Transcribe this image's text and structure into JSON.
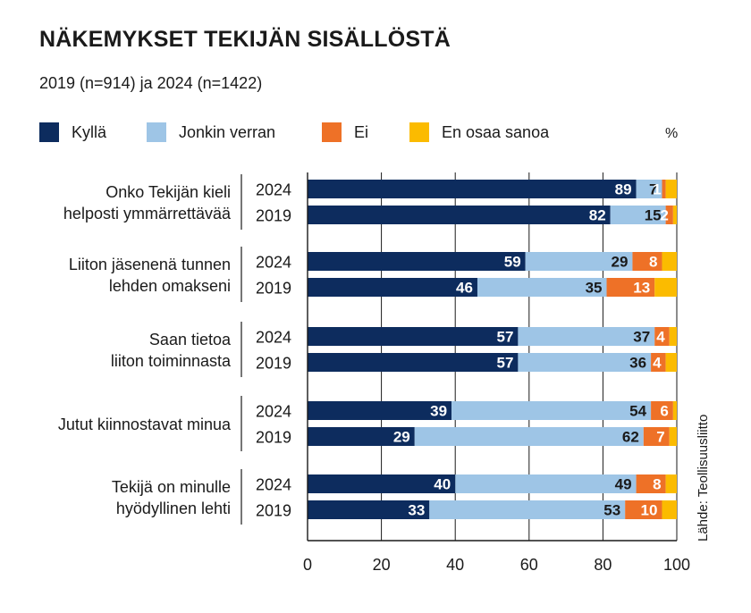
{
  "title": "NÄKEMYKSET TEKIJÄN SISÄLLÖSTÄ",
  "subtitle": "2019 (n=914) ja 2024 (n=1422)",
  "unit": "%",
  "source": "Lähde: Teollisuusliitto",
  "colors": {
    "kylla": "#0d2c5e",
    "jonkin": "#9ec5e6",
    "ei": "#ee7127",
    "eos": "#fbbb00"
  },
  "chart_data": {
    "type": "bar",
    "orientation": "horizontal",
    "stacked": true,
    "title": "NÄKEMYKSET TEKIJÄN SISÄLLÖSTÄ",
    "subtitle": "2019 (n=914) ja 2024 (n=1422)",
    "unit": "%",
    "xlim": [
      0,
      100
    ],
    "xticks": [
      0,
      20,
      40,
      60,
      80,
      100
    ],
    "grid": true,
    "legend_position": "top",
    "series": [
      {
        "name": "Kyllä",
        "key": "kylla"
      },
      {
        "name": "Jonkin verran",
        "key": "jonkin"
      },
      {
        "name": "Ei",
        "key": "ei"
      },
      {
        "name": "En osaa sanoa",
        "key": "eos"
      }
    ],
    "groups": [
      {
        "label": [
          "Onko Tekijän kieli",
          "helposti ymmärrettävää"
        ],
        "bars": [
          {
            "year": "2024",
            "values": [
              89,
              7,
              1,
              3
            ],
            "labels": [
              "89",
              "7",
              "1",
              ""
            ]
          },
          {
            "year": "2019",
            "values": [
              82,
              15,
              2,
              1
            ],
            "labels": [
              "82",
              "15",
              "2",
              ""
            ]
          }
        ]
      },
      {
        "label": [
          "Liiton jäsenenä tunnen",
          "lehden omakseni"
        ],
        "bars": [
          {
            "year": "2024",
            "values": [
              59,
              29,
              8,
              4
            ],
            "labels": [
              "59",
              "29",
              "8",
              ""
            ]
          },
          {
            "year": "2019",
            "values": [
              46,
              35,
              13,
              6
            ],
            "labels": [
              "46",
              "35",
              "13",
              ""
            ]
          }
        ]
      },
      {
        "label": [
          "Saan tietoa",
          "liiton toiminnasta"
        ],
        "bars": [
          {
            "year": "2024",
            "values": [
              57,
              37,
              4,
              2
            ],
            "labels": [
              "57",
              "37",
              "4",
              ""
            ]
          },
          {
            "year": "2019",
            "values": [
              57,
              36,
              4,
              3
            ],
            "labels": [
              "57",
              "36",
              "4",
              ""
            ]
          }
        ]
      },
      {
        "label": [
          "Jutut kiinnostavat minua"
        ],
        "bars": [
          {
            "year": "2024",
            "values": [
              39,
              54,
              6,
              1
            ],
            "labels": [
              "39",
              "54",
              "6",
              ""
            ]
          },
          {
            "year": "2019",
            "values": [
              29,
              62,
              7,
              2
            ],
            "labels": [
              "29",
              "62",
              "7",
              ""
            ]
          }
        ]
      },
      {
        "label": [
          "Tekijä on minulle",
          "hyödyllinen lehti"
        ],
        "bars": [
          {
            "year": "2024",
            "values": [
              40,
              49,
              8,
              3
            ],
            "labels": [
              "40",
              "49",
              "8",
              ""
            ]
          },
          {
            "year": "2019",
            "values": [
              33,
              53,
              10,
              4
            ],
            "labels": [
              "33",
              "53",
              "10",
              ""
            ]
          }
        ]
      }
    ]
  }
}
